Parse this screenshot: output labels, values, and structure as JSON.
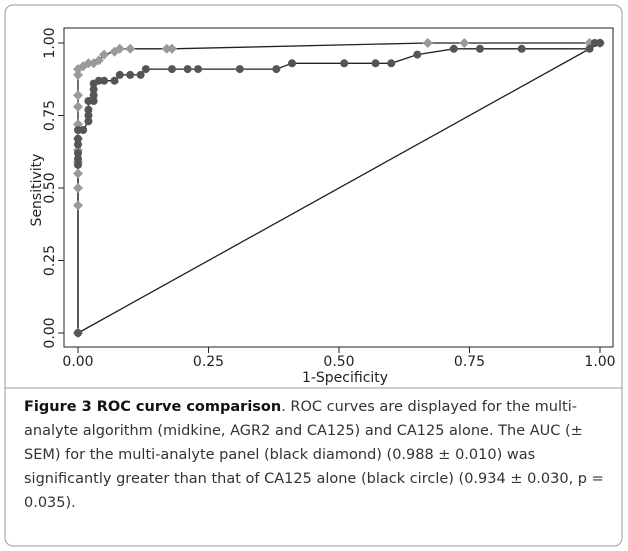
{
  "chart_data": {
    "type": "line",
    "xlabel": "1-Specificity",
    "ylabel": "Sensitivity",
    "xlim": [
      0,
      1
    ],
    "ylim": [
      0,
      1
    ],
    "xticks": [
      {
        "value": 0,
        "label": "0.00"
      },
      {
        "value": 0.25,
        "label": "0.25"
      },
      {
        "value": 0.5,
        "label": "0.50"
      },
      {
        "value": 0.75,
        "label": "0.75"
      },
      {
        "value": 1,
        "label": "1.00"
      }
    ],
    "yticks": [
      {
        "value": 0,
        "label": "0.00"
      },
      {
        "value": 0.25,
        "label": "0.25"
      },
      {
        "value": 0.5,
        "label": "0.50"
      },
      {
        "value": 0.75,
        "label": "0.75"
      },
      {
        "value": 1,
        "label": "1.00"
      }
    ],
    "series": [
      {
        "marker": "diamond",
        "color": "#9a9a9a",
        "x": [
          0,
          0,
          0,
          0,
          0,
          0,
          0,
          0,
          0,
          0,
          0,
          0,
          0.01,
          0.02,
          0.03,
          0.04,
          0.05,
          0.07,
          0.08,
          0.1,
          0.17,
          0.18,
          0.67,
          0.74,
          0.98,
          1
        ],
        "values": [
          0,
          0.44,
          0.5,
          0.55,
          0.59,
          0.63,
          0.67,
          0.72,
          0.78,
          0.82,
          0.89,
          0.91,
          0.92,
          0.93,
          0.93,
          0.94,
          0.96,
          0.97,
          0.98,
          0.98,
          0.98,
          0.98,
          1,
          1,
          1,
          1
        ]
      },
      {
        "marker": "circle",
        "color": "#555555",
        "x": [
          0,
          0,
          0,
          0,
          0,
          0,
          0,
          0.01,
          0.02,
          0.02,
          0.02,
          0.02,
          0.03,
          0.03,
          0.03,
          0.03,
          0.04,
          0.05,
          0.07,
          0.08,
          0.1,
          0.12,
          0.13,
          0.18,
          0.21,
          0.23,
          0.31,
          0.38,
          0.41,
          0.51,
          0.57,
          0.6,
          0.65,
          0.72,
          0.77,
          0.85,
          0.98,
          0.99,
          1
        ],
        "values": [
          0,
          0.58,
          0.6,
          0.62,
          0.65,
          0.67,
          0.7,
          0.7,
          0.73,
          0.75,
          0.77,
          0.8,
          0.8,
          0.82,
          0.84,
          0.86,
          0.87,
          0.87,
          0.87,
          0.89,
          0.89,
          0.89,
          0.91,
          0.91,
          0.91,
          0.91,
          0.91,
          0.91,
          0.93,
          0.93,
          0.93,
          0.93,
          0.96,
          0.98,
          0.98,
          0.98,
          0.98,
          1,
          1
        ]
      },
      {
        "marker": "none",
        "color": "#555555",
        "x": [
          0,
          1
        ],
        "values": [
          0,
          1
        ]
      }
    ]
  },
  "caption": {
    "title": "Figure 3 ROC curve comparison",
    "text": ". ROC curves are displayed for the multi-analyte algorithm (midkine, AGR2 and CA125) and CA125 alone. The AUC (± SEM) for the multi-analyte panel (black diamond) (0.988 ± 0.010) was significantly greater than that of CA125 alone (black circle) (0.934 ± 0.030, p = 0.035)."
  }
}
